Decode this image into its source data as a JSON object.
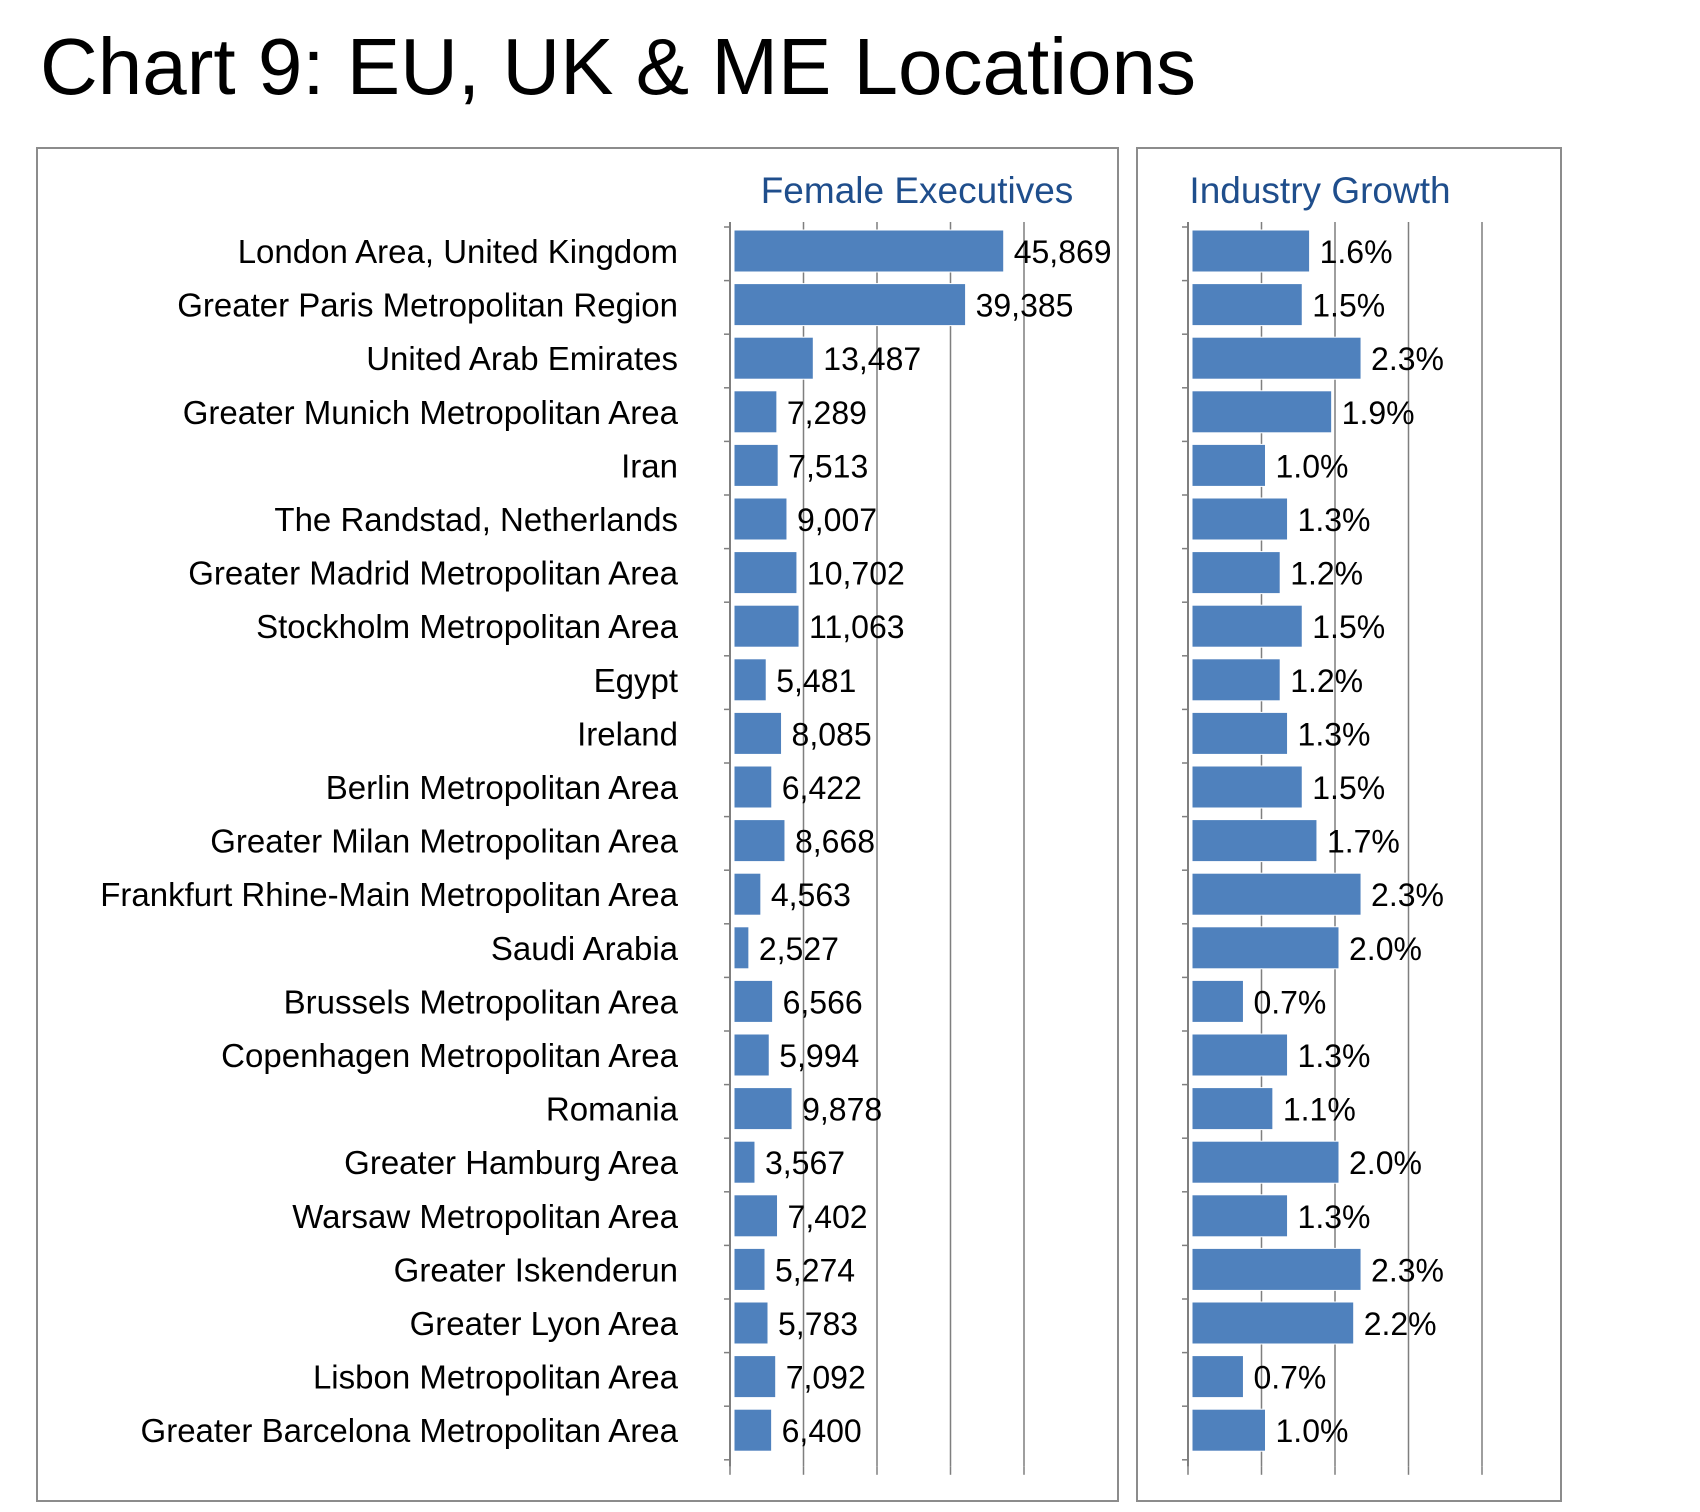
{
  "title": "Chart 9: EU, UK & ME Locations",
  "colors": {
    "bar": "#4f81bd",
    "header": "#1f4e8c",
    "axis": "#7f7f7f"
  },
  "chart_data": [
    {
      "type": "bar",
      "orientation": "horizontal",
      "title": "Female Executives",
      "grid": true,
      "xlim": [
        0,
        50000
      ],
      "categories": [
        "London Area, United Kingdom",
        "Greater Paris Metropolitan Region",
        "United Arab Emirates",
        "Greater Munich Metropolitan Area",
        "Iran",
        "The Randstad, Netherlands",
        "Greater Madrid Metropolitan Area",
        "Stockholm Metropolitan Area",
        "Egypt",
        "Ireland",
        "Berlin Metropolitan Area",
        "Greater Milan Metropolitan Area",
        "Frankfurt Rhine-Main Metropolitan Area",
        "Saudi Arabia",
        "Brussels Metropolitan Area",
        "Copenhagen Metropolitan Area",
        "Romania",
        "Greater Hamburg Area",
        "Warsaw Metropolitan Area",
        "Greater Iskenderun",
        "Greater Lyon Area",
        "Lisbon Metropolitan Area",
        "Greater Barcelona Metropolitan Area"
      ],
      "values": [
        45869,
        39385,
        13487,
        7289,
        7513,
        9007,
        10702,
        11063,
        5481,
        8085,
        6422,
        8668,
        4563,
        2527,
        6566,
        5994,
        9878,
        3567,
        7402,
        5274,
        5783,
        7092,
        6400
      ],
      "value_labels": [
        "45,869",
        "39,385",
        "13,487",
        "7,289",
        "7,513",
        "9,007",
        "10,702",
        "11,063",
        "5,481",
        "8,085",
        "6,422",
        "8,668",
        "4,563",
        "2,527",
        "6,566",
        "5,994",
        "9,878",
        "3,567",
        "7,402",
        "5,274",
        "5,783",
        "7,092",
        "6,400"
      ]
    },
    {
      "type": "bar",
      "orientation": "horizontal",
      "title": "Industry Growth",
      "grid": true,
      "xlim": [
        0,
        4.0
      ],
      "values": [
        1.6,
        1.5,
        2.3,
        1.9,
        1.0,
        1.3,
        1.2,
        1.5,
        1.2,
        1.3,
        1.5,
        1.7,
        2.3,
        2.0,
        0.7,
        1.3,
        1.1,
        2.0,
        1.3,
        2.3,
        2.2,
        0.7,
        1.0
      ],
      "value_labels": [
        "1.6%",
        "1.5%",
        "2.3%",
        "1.9%",
        "1.0%",
        "1.3%",
        "1.2%",
        "1.5%",
        "1.2%",
        "1.3%",
        "1.5%",
        "1.7%",
        "2.3%",
        "2.0%",
        "0.7%",
        "1.3%",
        "1.1%",
        "2.0%",
        "1.3%",
        "2.3%",
        "2.2%",
        "0.7%",
        "1.0%"
      ]
    }
  ]
}
